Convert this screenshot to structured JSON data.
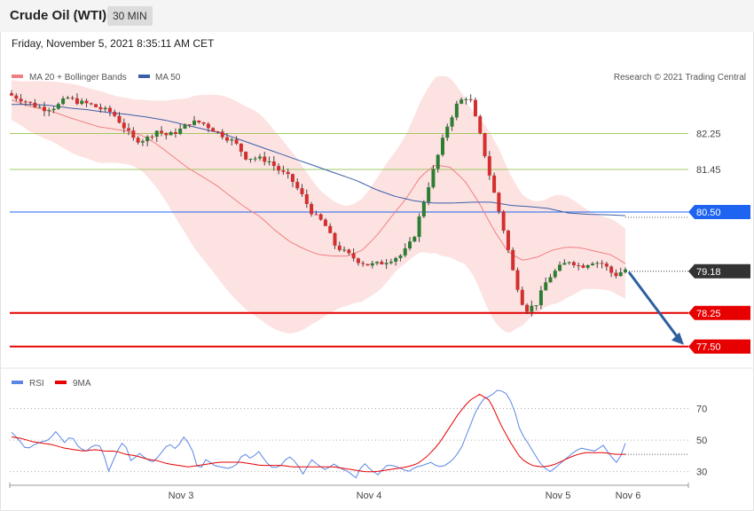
{
  "header": {
    "title": "Crude Oil (WTI)",
    "timeframe": "30 MIN"
  },
  "date_line": "Friday, November 5, 2021 8:35:11 AM CET",
  "colors": {
    "bollinger_fill": "#fde0e0",
    "ma20": "#f08080",
    "ma50": "#3a5fa8",
    "bull": "#2e7d32",
    "bear": "#d32f2f",
    "support": "#e60000",
    "pivot": "#1e64f0",
    "resistance": "#8cbf3f",
    "rsi": "#5b86e5",
    "rsi_ma": "#e60000",
    "arrow": "#2d5f9e",
    "last_price": "#333333"
  },
  "chart_data": [
    {
      "type": "candlestick",
      "title": "",
      "y_range": [
        76.92,
        83.25
      ],
      "legend": [
        {
          "name": "MA 20 + Bollinger Bands",
          "color": "#f08080"
        },
        {
          "name": "MA 50",
          "color": "#3a5fa8"
        }
      ],
      "legend_position": "top-left",
      "credit": "Research © 2021 Trading Central",
      "x_ticks": [
        "Nov 3",
        "Nov 4",
        "Nov 5",
        "Nov 6"
      ],
      "levels": [
        {
          "label": "82.25",
          "value": 82.25,
          "kind": "resistance"
        },
        {
          "label": "81.45",
          "value": 81.45,
          "kind": "resistance"
        },
        {
          "label": "80.50",
          "value": 80.5,
          "kind": "pivot"
        },
        {
          "label": "79.18",
          "value": 79.18,
          "kind": "last"
        },
        {
          "label": "78.25",
          "value": 78.25,
          "kind": "support"
        },
        {
          "label": "77.50",
          "value": 77.5,
          "kind": "support"
        }
      ],
      "close_path": [
        83.1,
        83.0,
        82.88,
        82.8,
        82.85,
        83.05,
        82.95,
        82.9,
        82.8,
        82.72,
        82.42,
        82.1,
        82.12,
        82.32,
        82.2,
        82.32,
        82.5,
        82.5,
        82.35,
        82.2,
        82.05,
        81.72,
        81.7,
        81.65,
        81.42,
        81.25,
        80.88,
        80.45,
        80.25,
        79.75,
        79.58,
        79.42,
        79.32,
        79.35,
        79.45,
        79.55,
        79.9,
        80.8,
        81.6,
        82.4,
        82.95,
        83.1,
        82.2,
        81.15,
        80.2,
        79.1,
        78.3,
        78.45,
        79.0,
        79.25,
        79.42,
        79.28,
        79.4,
        79.35,
        79.08,
        79.22
      ],
      "ma20_path": [
        83.0,
        82.88,
        82.8,
        82.72,
        82.6,
        82.5,
        82.4,
        82.35,
        82.3,
        82.2,
        82.0,
        81.75,
        81.5,
        81.3,
        81.1,
        80.85,
        80.6,
        80.4,
        80.1,
        79.85,
        79.68,
        79.55,
        79.52,
        79.52,
        79.65,
        79.98,
        80.4,
        80.8,
        81.3,
        81.55,
        81.5,
        81.2,
        80.7,
        80.1,
        79.6,
        79.42,
        79.5,
        79.65,
        79.72,
        79.7,
        79.62,
        79.55,
        79.35
      ],
      "ma50_path": [
        82.9,
        82.9,
        82.88,
        82.82,
        82.78,
        82.72,
        82.68,
        82.62,
        82.55,
        82.45,
        82.35,
        82.25,
        82.1,
        81.95,
        81.8,
        81.65,
        81.5,
        81.35,
        81.2,
        81.0,
        80.85,
        80.75,
        80.7,
        80.7,
        80.72,
        80.72,
        80.65,
        80.62,
        80.58,
        80.48,
        80.45,
        80.44,
        80.42
      ]
    },
    {
      "type": "line",
      "title": "",
      "y_range": [
        14.1,
        87.1
      ],
      "y_ticks": [
        "70",
        "50",
        "30"
      ],
      "legend": [
        {
          "name": "RSI",
          "color": "#5b86e5"
        },
        {
          "name": "9MA",
          "color": "#e60000"
        }
      ],
      "rsi_path": [
        55,
        50,
        44,
        47,
        49,
        50,
        56,
        48,
        53,
        45,
        43,
        47,
        46,
        30,
        42,
        50,
        36,
        42,
        38,
        36,
        42,
        48,
        44,
        52,
        46,
        30,
        38,
        34,
        33,
        32,
        34,
        42,
        38,
        43,
        36,
        32,
        34,
        40,
        36,
        28,
        38,
        34,
        31,
        35,
        32,
        30,
        26,
        36,
        31,
        28,
        34,
        34,
        32,
        30,
        33,
        34,
        36,
        33,
        34,
        38,
        44,
        56,
        68,
        76,
        78,
        82,
        80,
        72,
        55,
        48,
        40,
        33,
        30,
        34,
        38,
        42,
        45,
        44,
        43,
        47,
        40,
        35,
        48
      ],
      "rsi_ma_path": [
        52,
        51,
        49,
        48,
        47,
        45,
        44,
        43,
        44,
        43,
        43,
        41,
        40,
        38,
        37,
        35,
        34,
        33,
        34,
        35,
        36,
        36,
        36,
        35,
        34,
        34,
        34,
        33,
        33,
        33,
        33,
        33,
        32,
        31,
        30,
        30,
        31,
        32,
        33,
        35,
        40,
        47,
        57,
        67,
        75,
        79,
        75,
        60,
        48,
        38,
        34,
        33,
        34,
        37,
        40,
        42,
        42,
        42,
        41,
        41
      ]
    }
  ]
}
